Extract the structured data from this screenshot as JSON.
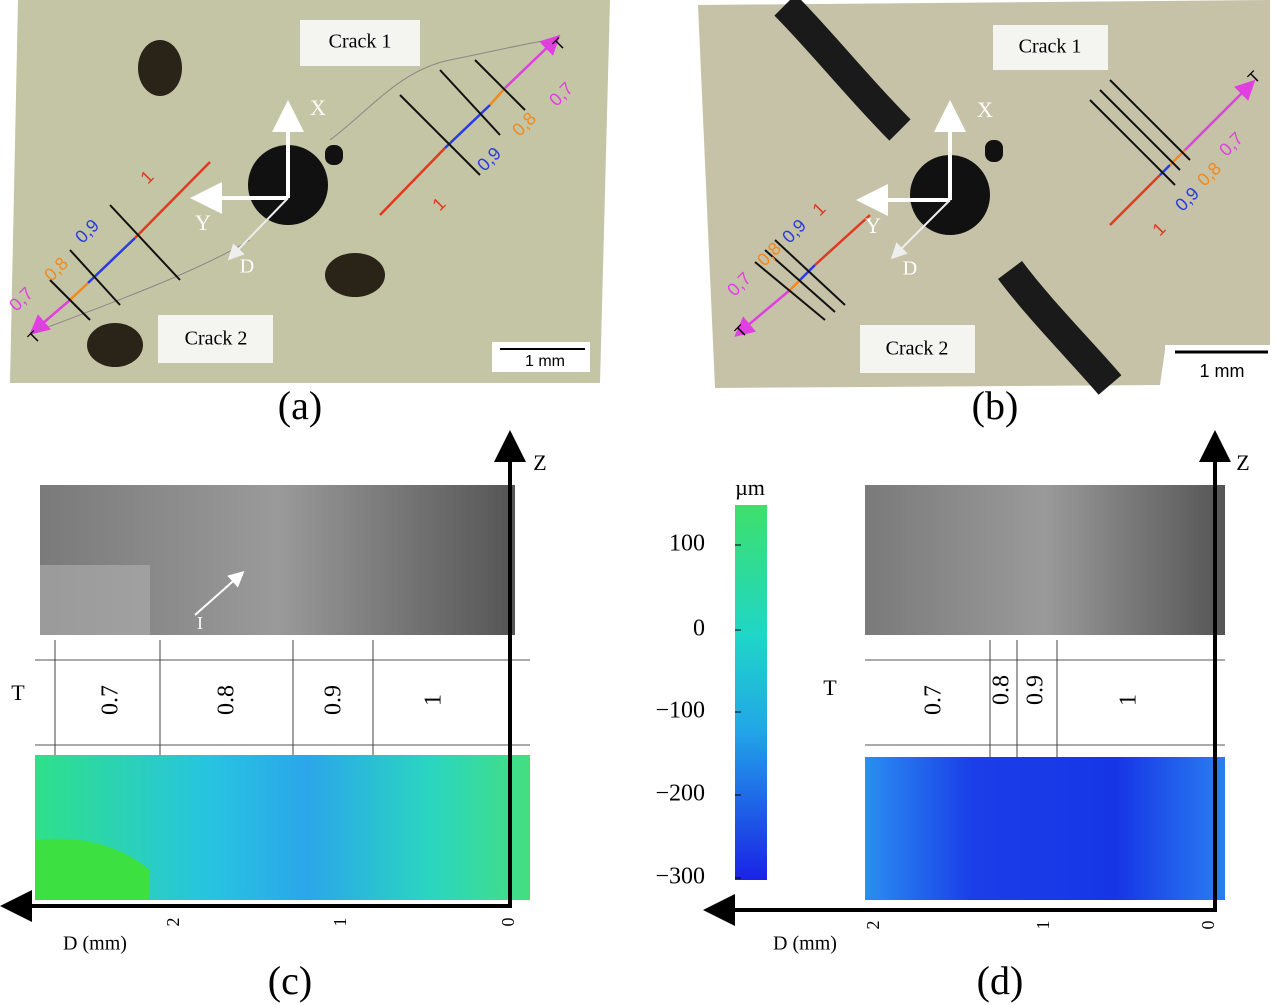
{
  "panels": {
    "a": {
      "label": "(a)",
      "crack_1": "Crack 1",
      "crack_2": "Crack 2",
      "axes": [
        "X",
        "Y",
        "D"
      ],
      "scale_bar": "1 mm",
      "zones": [
        "1",
        "0,9",
        "0,8",
        "0,7"
      ],
      "end": "T"
    },
    "b": {
      "label": "(b)",
      "crack_1": "Crack 1",
      "crack_2": "Crack 2",
      "axes": [
        "X",
        "Y",
        "D"
      ],
      "scale_bar": "1 mm",
      "zones": [
        "1",
        "0,9",
        "0,8",
        "0,7"
      ],
      "end": "T"
    },
    "c": {
      "label": "(c)",
      "z_axis": "Z",
      "row_label": "T",
      "zones": [
        "0.7",
        "0.8",
        "0.9",
        "1"
      ],
      "d_ticks": [
        "2",
        "1",
        "0"
      ],
      "d_axis": "D (mm)",
      "marker": "I"
    },
    "d": {
      "label": "(d)",
      "z_axis": "Z",
      "row_label": "T",
      "zones": [
        "0.7",
        "0.8",
        "0.9",
        "1"
      ],
      "d_ticks": [
        "2",
        "1",
        "0"
      ],
      "d_axis": "D (mm)"
    }
  },
  "colorbar": {
    "unit": "µm",
    "ticks": [
      "100",
      "0",
      "−100",
      "−200",
      "−300"
    ]
  }
}
